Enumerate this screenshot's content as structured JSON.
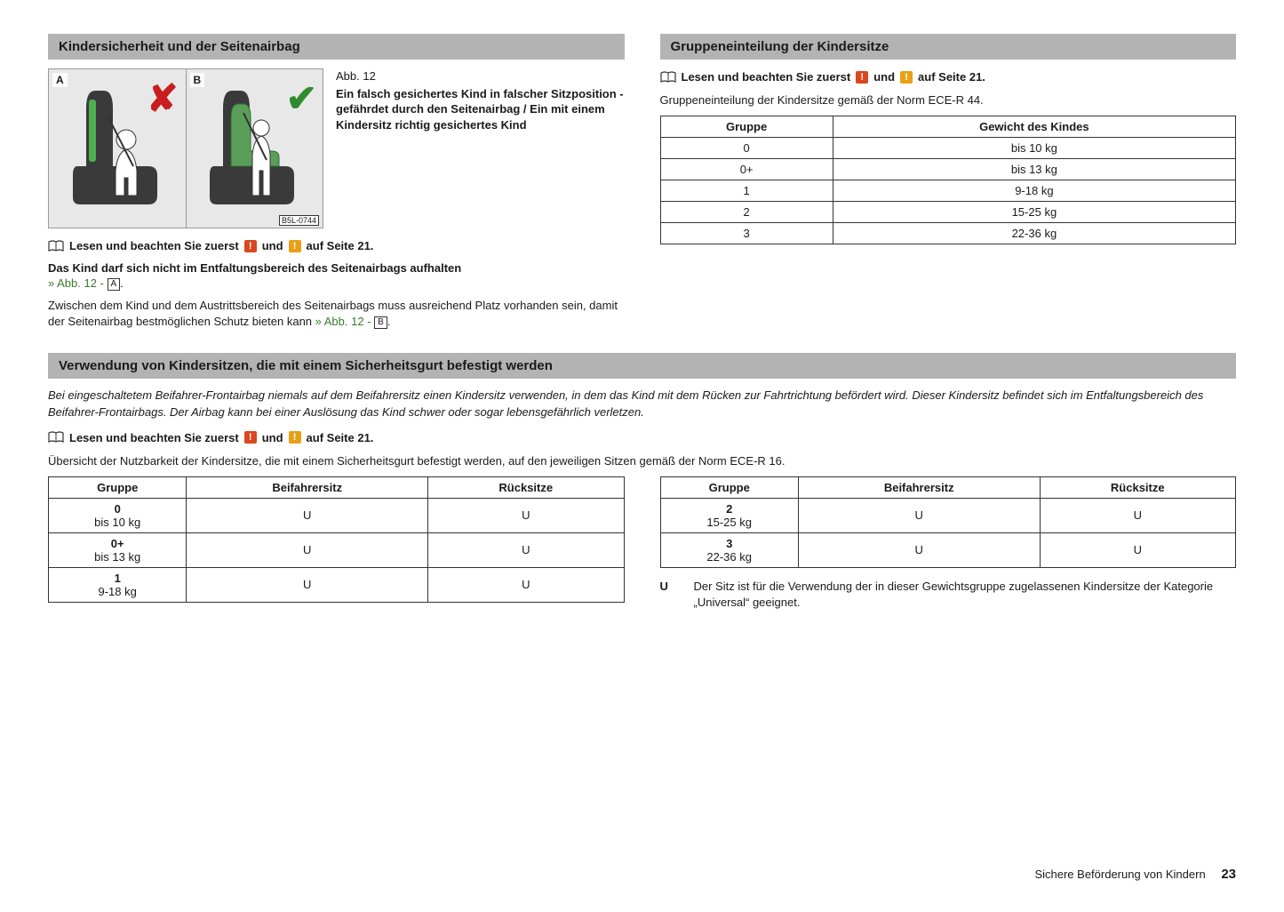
{
  "sec1": {
    "title": "Kindersicherheit und der Seitenairbag",
    "panelA": "A",
    "panelB": "B",
    "figId": "B5L-0744",
    "abb": "Abb. 12",
    "caption": "Ein falsch gesichertes Kind in falscher Sitzposition - gefährdet durch den Seitenairbag / Ein mit einem Kindersitz richtig gesichertes Kind",
    "readFirst": {
      "pre": "Lesen und beachten Sie zuerst",
      "mid": "und",
      "post": "auf Seite 21."
    },
    "bold": "Das Kind darf sich nicht im Entfaltungsbereich des Seitenairbags aufhalten",
    "ref1a": "» Abb. 12 - ",
    "ref1b": "A",
    "para2a": "Zwischen dem Kind und dem Austrittsbereich des Seitenairbags muss ausreichend Platz vorhanden sein, damit der Seitenairbag bestmöglichen Schutz bieten kann ",
    "ref2a": "» Abb. 12 - ",
    "ref2b": "B"
  },
  "sec2": {
    "title": "Gruppeneinteilung der Kindersitze",
    "readFirst": {
      "pre": "Lesen und beachten Sie zuerst",
      "mid": "und",
      "post": "auf Seite 21."
    },
    "intro": "Gruppeneinteilung der Kindersitze gemäß der Norm ECE-R 44.",
    "table": {
      "headers": [
        "Gruppe",
        "Gewicht des Kindes"
      ],
      "rows": [
        [
          "0",
          "bis 10 kg"
        ],
        [
          "0+",
          "bis 13 kg"
        ],
        [
          "1",
          "9-18 kg"
        ],
        [
          "2",
          "15-25 kg"
        ],
        [
          "3",
          "22-36 kg"
        ]
      ]
    }
  },
  "sec3": {
    "title": "Verwendung von Kindersitzen, die mit einem Sicherheitsgurt befestigt werden",
    "italic": "Bei eingeschaltetem Beifahrer-Frontairbag niemals auf dem Beifahrersitz einen Kindersitz verwenden, in dem das Kind mit dem Rücken zur Fahrtrichtung befördert wird. Dieser Kindersitz befindet sich im Entfaltungsbereich des Beifahrer-Frontairbags. Der Airbag kann bei einer Auslösung das Kind schwer oder sogar lebensgefährlich verletzen.",
    "readFirst": {
      "pre": "Lesen und beachten Sie zuerst",
      "mid": "und",
      "post": "auf Seite 21."
    },
    "intro": "Übersicht der Nutzbarkeit der Kindersitze, die mit einem Sicherheitsgurt befestigt werden, auf den jeweiligen Sitzen gemäß der Norm ECE-R 16.",
    "tableL": {
      "headers": [
        "Gruppe",
        "Beifahrersitz",
        "Rücksitze"
      ],
      "rows": [
        {
          "g": "0",
          "w": "bis 10 kg",
          "a": "U",
          "b": "U"
        },
        {
          "g": "0+",
          "w": "bis 13 kg",
          "a": "U",
          "b": "U"
        },
        {
          "g": "1",
          "w": "9-18 kg",
          "a": "U",
          "b": "U"
        }
      ]
    },
    "tableR": {
      "headers": [
        "Gruppe",
        "Beifahrersitz",
        "Rücksitze"
      ],
      "rows": [
        {
          "g": "2",
          "w": "15-25 kg",
          "a": "U",
          "b": "U"
        },
        {
          "g": "3",
          "w": "22-36 kg",
          "a": "U",
          "b": "U"
        }
      ]
    },
    "legend": {
      "key": "U",
      "text": "Der Sitz ist für die Verwendung der in dieser Gewichtsgruppe zugelassenen Kindersitze der Kategorie „Universal“ geeignet."
    }
  },
  "footer": {
    "title": "Sichere Beförderung von Kindern",
    "page": "23"
  },
  "colors": {
    "hdr_bg": "#b3b3b3",
    "link_green": "#3a7a2e",
    "warn_red": "#d9481f",
    "warn_yel": "#e8a016",
    "x_red": "#c81e1e",
    "check_green": "#2e8b2e"
  }
}
